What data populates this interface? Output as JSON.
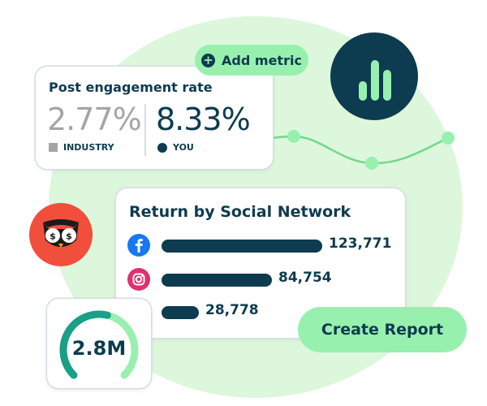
{
  "add_metric": {
    "label": "Add metric",
    "icon": "plus-icon"
  },
  "engagement": {
    "title": "Post engagement rate",
    "industry_value": "2.77%",
    "you_value": "8.33%",
    "industry_label": "INDUSTRY",
    "you_label": "YOU"
  },
  "return_by_network": {
    "title": "Return by Social Network",
    "rows": [
      {
        "network": "facebook",
        "icon": "facebook-icon",
        "value": "123,771",
        "amount": 123771
      },
      {
        "network": "instagram",
        "icon": "instagram-icon",
        "value": "84,754",
        "amount": 84754
      },
      {
        "network": "",
        "icon": "",
        "value": "28,778",
        "amount": 28778
      }
    ]
  },
  "gauge": {
    "value": "2.8M",
    "fraction": 0.55
  },
  "create_report": {
    "label": "Create Report"
  },
  "icons": {
    "analytics": "bar-chart-icon",
    "logo": "owl-logo-icon"
  },
  "colors": {
    "navy": "#0d3b4f",
    "mint": "#98f0ae",
    "background_blob": "#dcf7dc",
    "gray": "#a5a5a5",
    "owl_red": "#f14e3c",
    "facebook": "#1877f2"
  }
}
